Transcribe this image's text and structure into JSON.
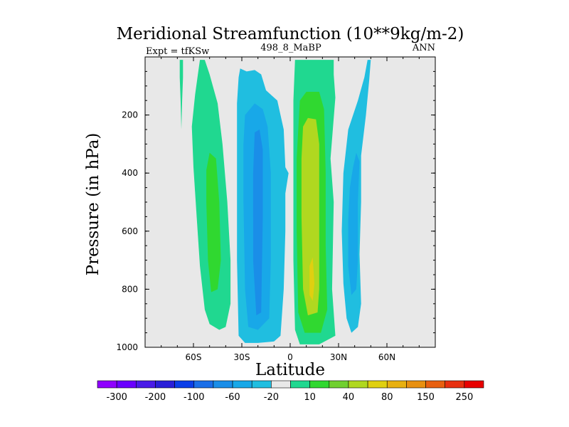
{
  "chart_data": {
    "type": "contour",
    "title": "Meridional Streamfunction (10**9kg/m-2)",
    "subtitle_left": "Expt = tfKSw",
    "subtitle_center": "498_8_MaBP",
    "subtitle_right": "ANN",
    "xlabel": "Latitude",
    "ylabel": "Pressure (in hPa)",
    "xlim": [
      -90,
      90
    ],
    "ylim": [
      1000,
      0
    ],
    "xticks": [
      {
        "value": -60,
        "label": "60S"
      },
      {
        "value": -30,
        "label": "30S"
      },
      {
        "value": 0,
        "label": "0"
      },
      {
        "value": 30,
        "label": "30N"
      },
      {
        "value": 60,
        "label": "60N"
      }
    ],
    "yticks": [
      {
        "value": 200,
        "label": "200"
      },
      {
        "value": 400,
        "label": "400"
      },
      {
        "value": 600,
        "label": "600"
      },
      {
        "value": 800,
        "label": "800"
      },
      {
        "value": 1000,
        "label": "1000"
      }
    ],
    "plot_background": "#e8e8e8",
    "colorbar": {
      "colors": [
        "#8f00ff",
        "#6a00ff",
        "#4a1be8",
        "#2a1fd8",
        "#0a3ee8",
        "#1a6ee8",
        "#1a8ee8",
        "#18a8e8",
        "#20bee0",
        "#e8e8e8",
        "#20d890",
        "#30d830",
        "#70d030",
        "#b0d820",
        "#e0d010",
        "#e8b010",
        "#e89010",
        "#e86010",
        "#e83010",
        "#e80000"
      ],
      "labels": [
        "-300",
        "-200",
        "-100",
        "-60",
        "-20",
        "10",
        "40",
        "80",
        "150",
        "250"
      ]
    },
    "regions": [
      {
        "name": "cell-far-south-thin",
        "level": "10",
        "points": [
          [
            -68.5,
            10
          ],
          [
            -66.5,
            10
          ],
          [
            -66.5,
            70
          ],
          [
            -67,
            150
          ],
          [
            -67.5,
            250
          ],
          [
            -68,
            150
          ],
          [
            -68.5,
            70
          ]
        ]
      },
      {
        "name": "cell-south-ferrel",
        "level": "10",
        "points": [
          [
            -57,
            50
          ],
          [
            -56,
            10
          ],
          [
            -53,
            10
          ],
          [
            -50,
            60
          ],
          [
            -45,
            160
          ],
          [
            -42,
            300
          ],
          [
            -39,
            500
          ],
          [
            -37,
            700
          ],
          [
            -37,
            850
          ],
          [
            -40,
            930
          ],
          [
            -44,
            940
          ],
          [
            -50,
            920
          ],
          [
            -53,
            870
          ],
          [
            -56,
            720
          ],
          [
            -58,
            550
          ],
          [
            -60,
            380
          ],
          [
            -61,
            240
          ],
          [
            -59,
            130
          ]
        ]
      },
      {
        "name": "cell-south-ferrel-core",
        "level": "40",
        "points": [
          [
            -50,
            330
          ],
          [
            -46,
            350
          ],
          [
            -44,
            500
          ],
          [
            -43,
            700
          ],
          [
            -45,
            800
          ],
          [
            -49,
            810
          ],
          [
            -51,
            700
          ],
          [
            -52,
            500
          ],
          [
            -52,
            390
          ]
        ]
      },
      {
        "name": "cell-south-hadley",
        "level": "-20",
        "points": [
          [
            -32,
            70
          ],
          [
            -31,
            40
          ],
          [
            -27,
            50
          ],
          [
            -22,
            45
          ],
          [
            -18,
            60
          ],
          [
            -15,
            115
          ],
          [
            -8,
            150
          ],
          [
            -4,
            250
          ],
          [
            -3,
            380
          ],
          [
            -1,
            400
          ],
          [
            -3,
            470
          ],
          [
            -3,
            600
          ],
          [
            -4,
            800
          ],
          [
            -6,
            960
          ],
          [
            -10,
            980
          ],
          [
            -20,
            985
          ],
          [
            -28,
            985
          ],
          [
            -32,
            960
          ],
          [
            -33,
            700
          ],
          [
            -33,
            400
          ],
          [
            -33,
            160
          ]
        ]
      },
      {
        "name": "cell-south-hadley-mid",
        "level": "-60",
        "points": [
          [
            -28,
            200
          ],
          [
            -22,
            160
          ],
          [
            -17,
            180
          ],
          [
            -14,
            240
          ],
          [
            -12,
            400
          ],
          [
            -12,
            700
          ],
          [
            -13,
            900
          ],
          [
            -20,
            940
          ],
          [
            -26,
            930
          ],
          [
            -28,
            800
          ],
          [
            -29,
            500
          ],
          [
            -29,
            300
          ]
        ]
      },
      {
        "name": "cell-south-hadley-core",
        "level": "-100",
        "points": [
          [
            -22,
            260
          ],
          [
            -19,
            250
          ],
          [
            -17,
            320
          ],
          [
            -17,
            550
          ],
          [
            -18,
            880
          ],
          [
            -21,
            890
          ],
          [
            -23,
            700
          ],
          [
            -23,
            400
          ]
        ]
      },
      {
        "name": "cell-north-hadley",
        "level": "10",
        "points": [
          [
            3,
            10
          ],
          [
            15,
            10
          ],
          [
            27,
            10
          ],
          [
            27,
            60
          ],
          [
            28,
            140
          ],
          [
            25,
            350
          ],
          [
            27,
            500
          ],
          [
            26,
            800
          ],
          [
            28,
            960
          ],
          [
            18,
            990
          ],
          [
            6,
            990
          ],
          [
            3,
            940
          ],
          [
            2,
            700
          ],
          [
            2,
            400
          ],
          [
            2,
            150
          ]
        ]
      },
      {
        "name": "cell-north-hadley-mid",
        "level": "40",
        "points": [
          [
            6,
            150
          ],
          [
            10,
            120
          ],
          [
            18,
            120
          ],
          [
            21,
            180
          ],
          [
            22,
            400
          ],
          [
            22,
            650
          ],
          [
            23,
            870
          ],
          [
            19,
            950
          ],
          [
            9,
            950
          ],
          [
            5,
            880
          ],
          [
            4,
            600
          ],
          [
            4,
            350
          ]
        ]
      },
      {
        "name": "cell-north-hadley-core",
        "level": "80",
        "points": [
          [
            8,
            240
          ],
          [
            11,
            210
          ],
          [
            16,
            215
          ],
          [
            18,
            300
          ],
          [
            18,
            550
          ],
          [
            18,
            800
          ],
          [
            17,
            880
          ],
          [
            11,
            890
          ],
          [
            8,
            800
          ],
          [
            7,
            550
          ],
          [
            7,
            350
          ]
        ]
      },
      {
        "name": "cell-north-hadley-inner",
        "level": "150",
        "points": [
          [
            12,
            720
          ],
          [
            14,
            690
          ],
          [
            15,
            780
          ],
          [
            14,
            840
          ],
          [
            12,
            820
          ]
        ]
      },
      {
        "name": "cell-north-ferrel",
        "level": "-20",
        "points": [
          [
            48,
            10
          ],
          [
            50,
            10
          ],
          [
            49,
            80
          ],
          [
            47,
            200
          ],
          [
            44,
            340
          ],
          [
            44,
            500
          ],
          [
            43,
            680
          ],
          [
            44,
            850
          ],
          [
            42,
            930
          ],
          [
            38,
            950
          ],
          [
            35,
            900
          ],
          [
            33,
            780
          ],
          [
            32,
            600
          ],
          [
            33,
            400
          ],
          [
            36,
            250
          ],
          [
            42,
            150
          ],
          [
            46,
            70
          ]
        ]
      },
      {
        "name": "cell-north-ferrel-core",
        "level": "-60",
        "points": [
          [
            41,
            330
          ],
          [
            43,
            360
          ],
          [
            42,
            500
          ],
          [
            42,
            700
          ],
          [
            41,
            800
          ],
          [
            38,
            820
          ],
          [
            36,
            720
          ],
          [
            36,
            560
          ],
          [
            37,
            450
          ],
          [
            39,
            380
          ]
        ]
      }
    ]
  }
}
